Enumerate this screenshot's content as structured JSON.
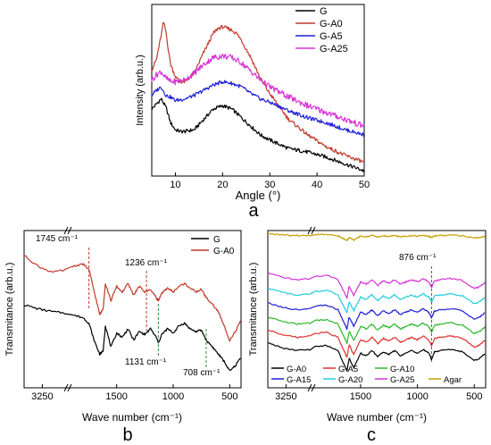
{
  "chart_data": [
    {
      "panel": "a",
      "type": "line",
      "xlabel": "Angle (°)",
      "ylabel": "Intensity (arb.u.)",
      "xlim": [
        5,
        50
      ],
      "ylim": [
        0,
        100
      ],
      "x_ticks": [
        10,
        20,
        30,
        40,
        50
      ],
      "legend_position": "top-right",
      "colors": [
        "#000000",
        "#c0392b",
        "#1f1fd6",
        "#d633d6"
      ],
      "series": [
        {
          "name": "G",
          "x": [
            5,
            6,
            7,
            8,
            9,
            10,
            11,
            12,
            14,
            16,
            18,
            20,
            21,
            22,
            24,
            26,
            28,
            30,
            34,
            38,
            42,
            46,
            50
          ],
          "y": [
            39,
            42,
            45,
            40,
            31,
            27,
            26,
            26,
            27,
            33,
            39,
            41,
            40,
            39,
            34,
            29,
            24,
            21,
            16,
            14,
            11,
            7,
            3
          ]
        },
        {
          "name": "G-A0",
          "x": [
            5,
            6,
            7,
            7.5,
            8,
            8.5,
            9,
            10,
            11,
            12,
            14,
            16,
            18,
            19,
            20,
            21,
            22,
            23,
            24,
            26,
            28,
            30,
            34,
            38,
            42,
            46,
            50
          ],
          "y": [
            62,
            68,
            82,
            90,
            84,
            74,
            65,
            58,
            55,
            55,
            60,
            72,
            83,
            86,
            87,
            86,
            85,
            83,
            79,
            69,
            57,
            48,
            33,
            24,
            17,
            12,
            8
          ]
        },
        {
          "name": "G-A5",
          "x": [
            5,
            6,
            7,
            8,
            9,
            10,
            12,
            14,
            16,
            18,
            20,
            22,
            24,
            26,
            28,
            30,
            34,
            38,
            42,
            46,
            50
          ],
          "y": [
            47,
            50,
            52,
            47,
            46,
            44,
            45,
            47,
            50,
            53,
            55,
            54,
            52,
            48,
            45,
            43,
            38,
            34,
            31,
            27,
            24
          ]
        },
        {
          "name": "G-A25",
          "x": [
            5,
            6,
            7,
            8,
            9,
            10,
            12,
            14,
            16,
            18,
            20,
            22,
            24,
            26,
            28,
            30,
            34,
            38,
            42,
            46,
            50
          ],
          "y": [
            56,
            59,
            61,
            57,
            55,
            55,
            56,
            60,
            65,
            69,
            70,
            69,
            66,
            61,
            56,
            52,
            46,
            41,
            37,
            33,
            29
          ]
        }
      ],
      "caption": "a"
    },
    {
      "panel": "b",
      "type": "line",
      "xlabel": "Wave number (cm⁻¹)",
      "ylabel": "Transmitance (arb.u.)",
      "xlim": [
        3500,
        400
      ],
      "x_ticks": [
        3250,
        1500,
        1000,
        500
      ],
      "x_break": true,
      "legend_position": "top-right",
      "colors": [
        "#000000",
        "#c0392b"
      ],
      "annotations": [
        {
          "text": "1745 cm⁻¹",
          "x": 1745
        },
        {
          "text": "1236 cm⁻¹",
          "x": 1236
        },
        {
          "text": "1131 cm⁻¹",
          "x": 1131
        },
        {
          "text": "708 cm⁻¹",
          "x": 708
        }
      ],
      "series": [
        {
          "name": "G",
          "x": [
            3500,
            3300,
            3100,
            2900,
            1900,
            1800,
            1745,
            1700,
            1650,
            1620,
            1600,
            1550,
            1500,
            1450,
            1400,
            1350,
            1300,
            1250,
            1200,
            1150,
            1131,
            1100,
            1050,
            1000,
            950,
            900,
            850,
            800,
            750,
            708,
            650,
            600,
            550,
            500,
            450,
            400
          ],
          "y": [
            55,
            52,
            50,
            49,
            48,
            46,
            42,
            30,
            20,
            22,
            40,
            25,
            35,
            32,
            38,
            30,
            36,
            34,
            38,
            32,
            28,
            34,
            38,
            35,
            40,
            42,
            38,
            36,
            37,
            30,
            25,
            20,
            15,
            8,
            12,
            18
          ]
        },
        {
          "name": "G-A0",
          "x": [
            3500,
            3300,
            3100,
            2900,
            1900,
            1800,
            1745,
            1700,
            1650,
            1620,
            1600,
            1550,
            1500,
            1450,
            1400,
            1350,
            1300,
            1250,
            1200,
            1150,
            1131,
            1100,
            1050,
            1000,
            950,
            900,
            850,
            800,
            750,
            708,
            650,
            600,
            550,
            500,
            450,
            400
          ],
          "y": [
            90,
            82,
            78,
            80,
            82,
            84,
            80,
            65,
            48,
            52,
            70,
            58,
            68,
            64,
            70,
            62,
            68,
            64,
            66,
            60,
            58,
            63,
            67,
            64,
            68,
            70,
            67,
            64,
            66,
            60,
            55,
            50,
            40,
            30,
            36,
            44
          ]
        }
      ],
      "caption": "b"
    },
    {
      "panel": "c",
      "type": "line",
      "xlabel": "Wave number (cm⁻¹)",
      "ylabel": "Transmitance (arb.u.)",
      "xlim": [
        3500,
        400
      ],
      "x_ticks": [
        3250,
        1500,
        1000,
        500
      ],
      "x_break": true,
      "legend_position": "bottom",
      "colors": [
        "#000000",
        "#e03030",
        "#2db82d",
        "#1f1fd6",
        "#22cce0",
        "#d633d6",
        "#c8a000"
      ],
      "annotations": [
        {
          "text": "876 cm⁻¹",
          "x": 876
        }
      ],
      "series": [
        {
          "name": "G-A0",
          "offset": 0
        },
        {
          "name": "G-A5",
          "offset": 1
        },
        {
          "name": "G-A10",
          "offset": 2
        },
        {
          "name": "G-A15",
          "offset": 3
        },
        {
          "name": "G-A20",
          "offset": 4
        },
        {
          "name": "G-A25",
          "offset": 5
        },
        {
          "name": "Agar",
          "offset": 6
        }
      ],
      "profile": {
        "x": [
          3500,
          3300,
          3100,
          2900,
          1900,
          1800,
          1700,
          1650,
          1620,
          1600,
          1560,
          1500,
          1450,
          1400,
          1350,
          1300,
          1250,
          1200,
          1150,
          1100,
          1050,
          1000,
          950,
          900,
          876,
          850,
          800,
          700,
          600,
          500,
          450,
          400
        ],
        "y": [
          30,
          26,
          24,
          25,
          27,
          28,
          24,
          14,
          8,
          18,
          10,
          22,
          20,
          24,
          19,
          23,
          21,
          24,
          20,
          22,
          24,
          22,
          25,
          22,
          17,
          23,
          24,
          25,
          23,
          16,
          18,
          22
        ]
      },
      "caption": "c"
    }
  ]
}
